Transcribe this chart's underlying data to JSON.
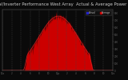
{
  "title": "Solar PV/Inverter Performance West Array  Actual & Average Power Output",
  "title_fontsize": 3.8,
  "bg_color": "#0a0a0a",
  "plot_bg_color": "#0a0a0a",
  "grid_color": "#444444",
  "actual_color": "#cc0000",
  "average_color": "#dd2222",
  "legend_actual_color": "#2222cc",
  "legend_average_color": "#cc0000",
  "ylim": [
    0,
    850
  ],
  "num_points": 720,
  "peak_value": 760,
  "x_tick_labels": [
    "12a",
    "2",
    "4",
    "6",
    "8",
    "10",
    "12p",
    "2",
    "4",
    "6",
    "8",
    "10",
    "12a"
  ],
  "x_tick_positions": [
    0,
    60,
    120,
    180,
    240,
    300,
    360,
    420,
    480,
    540,
    600,
    660,
    720
  ],
  "y_tick_vals": [
    0,
    100,
    200,
    300,
    400,
    500,
    600,
    700,
    800
  ]
}
